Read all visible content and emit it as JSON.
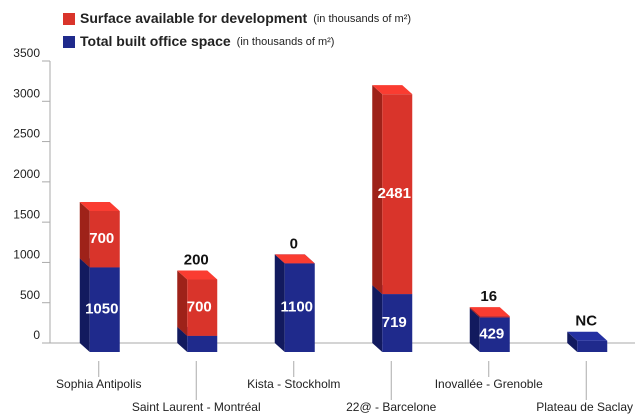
{
  "chart_data": {
    "type": "stacked_bar_3d",
    "categories": [
      "Sophia Antipolis",
      "Saint Laurent - Montréal",
      "Kista - Stockholm",
      "22@ - Barcelone",
      "Inovallée - Grenoble",
      "Plateau de Saclay"
    ],
    "series": [
      {
        "name": "Total built office space",
        "note": "(in thousands of  m²)",
        "color": "#1f2a8c",
        "side_color": "#121a5e",
        "values": [
          1050,
          200,
          1100,
          719,
          429,
          140
        ]
      },
      {
        "name": "Surface available for development",
        "note": "(in thousands of  m²)",
        "color": "#d9342b",
        "side_color": "#9e2219",
        "values": [
          700,
          700,
          0,
          2481,
          16,
          null
        ],
        "value_labels": [
          "700",
          "700",
          "0",
          "2481",
          "16",
          "NC"
        ]
      }
    ],
    "ylim": [
      0,
      3500
    ],
    "yticks": [
      0,
      500,
      1000,
      1500,
      2000,
      2500,
      3000,
      3500
    ],
    "grid": false
  }
}
